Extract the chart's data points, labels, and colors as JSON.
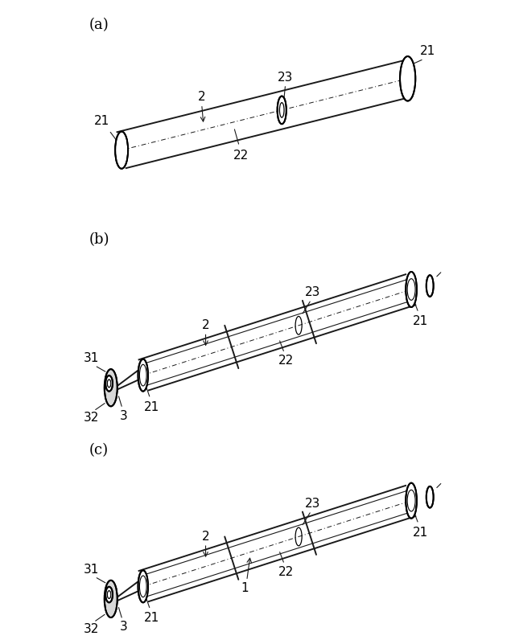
{
  "bg_color": "#ffffff",
  "line_color": "#1a1a1a",
  "fig_width": 6.4,
  "fig_height": 7.96,
  "panels": [
    "(a)",
    "(b)",
    "(c)"
  ],
  "label_fontsize": 13,
  "anno_fontsize": 11,
  "lw_main": 1.4,
  "lw_thin": 0.9,
  "lw_inner": 0.8
}
